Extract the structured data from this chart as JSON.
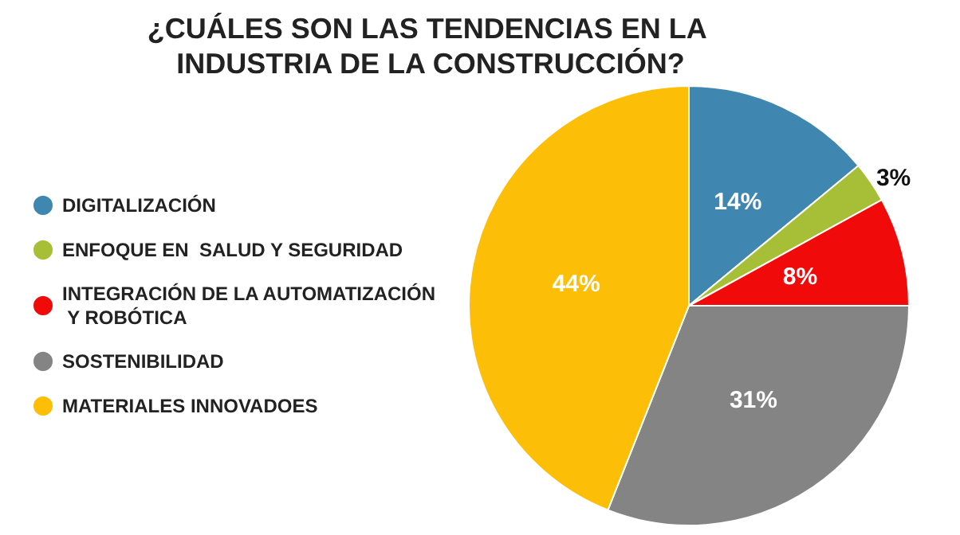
{
  "chart_data": {
    "type": "pie",
    "title": "¿CUÁLES SON LAS TENDENCIAS EN LA INDUSTRIA DE LA CONSTRUCCIÓN?",
    "categories": [
      "DIGITALIZACIÓN",
      "ENFOQUE EN  SALUD Y SEGURIDAD",
      "INTEGRACIÓN DE LA AUTOMATIZACIÓN Y ROBÓTICA",
      "SOSTENIBILIDAD",
      "MATERIALES INNOVADOES"
    ],
    "values": [
      14,
      3,
      8,
      31,
      44
    ],
    "colors": [
      "#3f86b0",
      "#a6bf36",
      "#f00a0a",
      "#848484",
      "#fcbe07"
    ],
    "value_labels": [
      "14%",
      "3%",
      "8%",
      "31%",
      "44%"
    ],
    "legend": "left"
  }
}
